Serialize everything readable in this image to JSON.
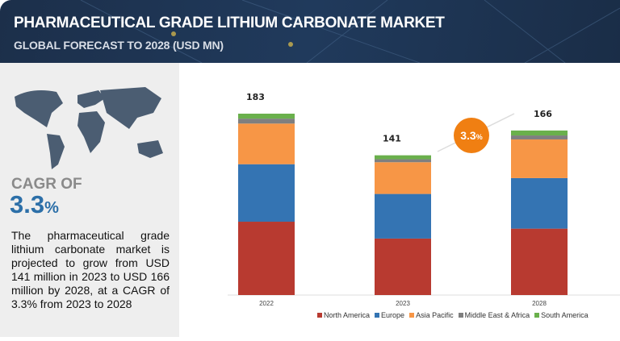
{
  "header": {
    "title": "PHARMACEUTICAL GRADE LITHIUM CARBONATE MARKET",
    "subtitle": "GLOBAL FORECAST TO 2028 (USD MN)"
  },
  "left_panel": {
    "cagr_label": "CAGR OF",
    "cagr_value": "3.3",
    "cagr_unit": "%",
    "description": "The pharmaceutical grade lithium carbonate market is projected to grow from USD 141 million in 2023 to USD 166 million by 2028, at a CAGR of 3.3% from 2023 to 2028"
  },
  "chart_data": {
    "type": "bar",
    "stacked": true,
    "categories": [
      "2022",
      "2023",
      "2028"
    ],
    "totals": [
      "183",
      "141",
      "166"
    ],
    "series": [
      {
        "name": "North America",
        "color": "#b83a30",
        "values": [
          74,
          57,
          67
        ]
      },
      {
        "name": "Europe",
        "color": "#3474b3",
        "values": [
          58,
          45,
          51
        ]
      },
      {
        "name": "Asia Pacific",
        "color": "#f79646",
        "values": [
          41,
          32,
          39
        ]
      },
      {
        "name": "Middle East & Africa",
        "color": "#7f7f7f",
        "values": [
          5,
          3,
          4
        ]
      },
      {
        "name": "South America",
        "color": "#6ab04c",
        "values": [
          5,
          4,
          5
        ]
      }
    ],
    "annotation": {
      "label": "3.3",
      "unit": "%",
      "color": "#f07f12"
    },
    "ylim": [
      0,
      183
    ]
  }
}
